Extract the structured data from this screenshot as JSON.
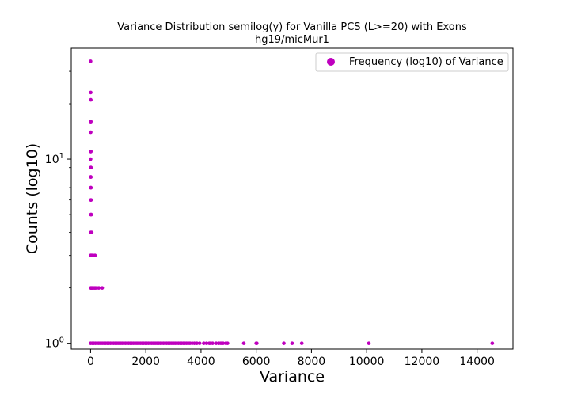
{
  "chart_data": {
    "type": "scatter",
    "title": "Variance Distribution semilog(y) for Vanilla PCS (L>=20) with Exons",
    "subtitle": "hg19/micMur1",
    "xlabel": "Variance",
    "ylabel": "Counts (log10)",
    "xlim": [
      -700,
      15300
    ],
    "ylim": [
      0.93,
      40
    ],
    "yscale": "log",
    "grid": false,
    "legend_position": "top-right",
    "marker_color": "#bf00bf",
    "x_ticks": [
      0,
      2000,
      4000,
      6000,
      8000,
      10000,
      12000,
      14000
    ],
    "x_tick_labels": [
      "0",
      "2000",
      "4000",
      "6000",
      "8000",
      "10000",
      "12000",
      "14000"
    ],
    "y_major_ticks": [
      1,
      10
    ],
    "y_major_tick_labels": [
      "10^0",
      "10^1"
    ],
    "y_minor_ticks": [
      2,
      3,
      4,
      5,
      6,
      7,
      8,
      9,
      20,
      30
    ],
    "series": [
      {
        "name": "Frequency (log10) of Variance",
        "points": [
          [
            0,
            34
          ],
          [
            5,
            23
          ],
          [
            8,
            21
          ],
          [
            3,
            16
          ],
          [
            10,
            16
          ],
          [
            5,
            14
          ],
          [
            2,
            11
          ],
          [
            12,
            11
          ],
          [
            0,
            10
          ],
          [
            6,
            9
          ],
          [
            14,
            9
          ],
          [
            3,
            8
          ],
          [
            11,
            8
          ],
          [
            4,
            7
          ],
          [
            15,
            7
          ],
          [
            6,
            6
          ],
          [
            18,
            6
          ],
          [
            8,
            5
          ],
          [
            25,
            5
          ],
          [
            4,
            4
          ],
          [
            12,
            4
          ],
          [
            30,
            4
          ],
          [
            40,
            4
          ],
          [
            2,
            3
          ],
          [
            15,
            3
          ],
          [
            35,
            3
          ],
          [
            60,
            3
          ],
          [
            90,
            3
          ],
          [
            160,
            3
          ],
          [
            5,
            2
          ],
          [
            20,
            2
          ],
          [
            45,
            2
          ],
          [
            70,
            2
          ],
          [
            100,
            2
          ],
          [
            140,
            2
          ],
          [
            180,
            2
          ],
          [
            230,
            2
          ],
          [
            300,
            2
          ],
          [
            420,
            2
          ],
          [
            0,
            1
          ],
          [
            60,
            1
          ],
          [
            120,
            1
          ],
          [
            180,
            1
          ],
          [
            240,
            1
          ],
          [
            300,
            1
          ],
          [
            360,
            1
          ],
          [
            420,
            1
          ],
          [
            480,
            1
          ],
          [
            540,
            1
          ],
          [
            600,
            1
          ],
          [
            660,
            1
          ],
          [
            720,
            1
          ],
          [
            780,
            1
          ],
          [
            840,
            1
          ],
          [
            900,
            1
          ],
          [
            960,
            1
          ],
          [
            1020,
            1
          ],
          [
            1080,
            1
          ],
          [
            1140,
            1
          ],
          [
            1200,
            1
          ],
          [
            1260,
            1
          ],
          [
            1320,
            1
          ],
          [
            1380,
            1
          ],
          [
            1440,
            1
          ],
          [
            1500,
            1
          ],
          [
            1560,
            1
          ],
          [
            1620,
            1
          ],
          [
            1680,
            1
          ],
          [
            1740,
            1
          ],
          [
            1800,
            1
          ],
          [
            1860,
            1
          ],
          [
            1920,
            1
          ],
          [
            1980,
            1
          ],
          [
            2040,
            1
          ],
          [
            2100,
            1
          ],
          [
            2160,
            1
          ],
          [
            2220,
            1
          ],
          [
            2280,
            1
          ],
          [
            2340,
            1
          ],
          [
            2400,
            1
          ],
          [
            2460,
            1
          ],
          [
            2520,
            1
          ],
          [
            2580,
            1
          ],
          [
            2640,
            1
          ],
          [
            2700,
            1
          ],
          [
            2760,
            1
          ],
          [
            2820,
            1
          ],
          [
            2880,
            1
          ],
          [
            2940,
            1
          ],
          [
            3000,
            1
          ],
          [
            3060,
            1
          ],
          [
            3120,
            1
          ],
          [
            3180,
            1
          ],
          [
            3240,
            1
          ],
          [
            3300,
            1
          ],
          [
            3360,
            1
          ],
          [
            3420,
            1
          ],
          [
            3480,
            1
          ],
          [
            3540,
            1
          ],
          [
            3600,
            1
          ],
          [
            3680,
            1
          ],
          [
            3760,
            1
          ],
          [
            3850,
            1
          ],
          [
            3950,
            1
          ],
          [
            4100,
            1
          ],
          [
            4200,
            1
          ],
          [
            4300,
            1
          ],
          [
            4350,
            1
          ],
          [
            4420,
            1
          ],
          [
            4550,
            1
          ],
          [
            4650,
            1
          ],
          [
            4720,
            1
          ],
          [
            4800,
            1
          ],
          [
            4900,
            1
          ],
          [
            4960,
            1
          ],
          [
            5550,
            1
          ],
          [
            6000,
            1
          ],
          [
            6020,
            1
          ],
          [
            7000,
            1
          ],
          [
            7300,
            1
          ],
          [
            7650,
            1
          ],
          [
            10080,
            1
          ],
          [
            14550,
            1
          ]
        ]
      }
    ]
  }
}
